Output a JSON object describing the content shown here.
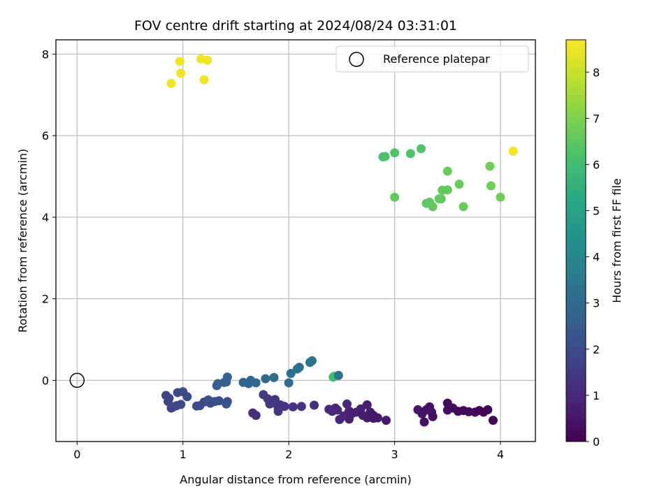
{
  "chart_data": {
    "type": "scatter",
    "title": "FOV centre drift starting at 2024/08/24 03:31:01",
    "xlabel": "Angular distance from reference (arcmin)",
    "ylabel": "Rotation from reference (arcmin)",
    "xlim": [
      -0.2,
      4.33
    ],
    "ylim": [
      -1.5,
      8.35
    ],
    "xticks": [
      0,
      1,
      2,
      3,
      4
    ],
    "yticks": [
      0,
      2,
      4,
      6,
      8
    ],
    "grid": true,
    "legend": {
      "position": "top-right",
      "entries": [
        {
          "label": "Reference platepar",
          "marker": "open-circle"
        }
      ]
    },
    "reference_point": {
      "x": 0,
      "y": 0
    },
    "colorbar": {
      "label": "Hours from first FF file",
      "colormap": "viridis",
      "range": [
        0,
        8.7
      ],
      "ticks": [
        0,
        1,
        2,
        3,
        4,
        5,
        6,
        7,
        8
      ]
    },
    "points": [
      {
        "x": 0.89,
        "y": 7.28,
        "c": 8.5
      },
      {
        "x": 0.97,
        "y": 7.82,
        "c": 8.5
      },
      {
        "x": 0.98,
        "y": 7.53,
        "c": 8.5
      },
      {
        "x": 1.17,
        "y": 7.88,
        "c": 8.5
      },
      {
        "x": 1.2,
        "y": 7.37,
        "c": 8.5
      },
      {
        "x": 1.23,
        "y": 7.85,
        "c": 8.5
      },
      {
        "x": 4.12,
        "y": 5.62,
        "c": 8.5
      },
      {
        "x": 2.89,
        "y": 5.48,
        "c": 6.2
      },
      {
        "x": 2.91,
        "y": 5.49,
        "c": 6.2
      },
      {
        "x": 3.0,
        "y": 5.58,
        "c": 6.3
      },
      {
        "x": 3.15,
        "y": 5.56,
        "c": 6.3
      },
      {
        "x": 3.25,
        "y": 5.68,
        "c": 6.3
      },
      {
        "x": 3.0,
        "y": 4.49,
        "c": 6.6
      },
      {
        "x": 3.3,
        "y": 4.34,
        "c": 6.5
      },
      {
        "x": 3.33,
        "y": 4.37,
        "c": 6.5
      },
      {
        "x": 3.36,
        "y": 4.26,
        "c": 6.6
      },
      {
        "x": 3.42,
        "y": 4.45,
        "c": 6.6
      },
      {
        "x": 3.44,
        "y": 4.45,
        "c": 6.6
      },
      {
        "x": 3.45,
        "y": 4.66,
        "c": 6.6
      },
      {
        "x": 3.5,
        "y": 4.67,
        "c": 6.6
      },
      {
        "x": 3.5,
        "y": 5.13,
        "c": 6.7
      },
      {
        "x": 3.61,
        "y": 4.81,
        "c": 6.7
      },
      {
        "x": 3.65,
        "y": 4.26,
        "c": 6.7
      },
      {
        "x": 3.9,
        "y": 5.25,
        "c": 6.8
      },
      {
        "x": 3.91,
        "y": 4.77,
        "c": 6.8
      },
      {
        "x": 4.0,
        "y": 4.49,
        "c": 6.8
      },
      {
        "x": 2.42,
        "y": 0.08,
        "c": 6.0
      },
      {
        "x": 2.43,
        "y": 0.1,
        "c": 6.0
      },
      {
        "x": 2.47,
        "y": 0.12,
        "c": 3.3
      },
      {
        "x": 2.2,
        "y": 0.44,
        "c": 3.3
      },
      {
        "x": 2.22,
        "y": 0.48,
        "c": 3.3
      },
      {
        "x": 2.1,
        "y": 0.32,
        "c": 3.2
      },
      {
        "x": 2.08,
        "y": 0.28,
        "c": 3.2
      },
      {
        "x": 2.02,
        "y": 0.17,
        "c": 3.1
      },
      {
        "x": 2.0,
        "y": -0.06,
        "c": 3.1
      },
      {
        "x": 1.86,
        "y": 0.07,
        "c": 3.0
      },
      {
        "x": 1.78,
        "y": 0.04,
        "c": 3.0
      },
      {
        "x": 1.69,
        "y": -0.06,
        "c": 2.9
      },
      {
        "x": 1.64,
        "y": 0.0,
        "c": 2.9
      },
      {
        "x": 1.62,
        "y": -0.08,
        "c": 2.8
      },
      {
        "x": 1.57,
        "y": -0.05,
        "c": 2.8
      },
      {
        "x": 1.42,
        "y": 0.08,
        "c": 2.7
      },
      {
        "x": 1.41,
        "y": -0.04,
        "c": 2.7
      },
      {
        "x": 1.39,
        "y": -0.05,
        "c": 2.7
      },
      {
        "x": 1.33,
        "y": -0.08,
        "c": 2.6
      },
      {
        "x": 1.32,
        "y": -0.13,
        "c": 2.6
      },
      {
        "x": 1.42,
        "y": -0.52,
        "c": 2.2
      },
      {
        "x": 1.41,
        "y": -0.58,
        "c": 2.2
      },
      {
        "x": 1.34,
        "y": -0.5,
        "c": 2.2
      },
      {
        "x": 1.3,
        "y": -0.52,
        "c": 2.2
      },
      {
        "x": 1.26,
        "y": -0.56,
        "c": 2.1
      },
      {
        "x": 1.24,
        "y": -0.48,
        "c": 2.1
      },
      {
        "x": 1.2,
        "y": -0.53,
        "c": 2.1
      },
      {
        "x": 1.16,
        "y": -0.62,
        "c": 2.0
      },
      {
        "x": 1.13,
        "y": -0.63,
        "c": 2.0
      },
      {
        "x": 1.04,
        "y": -0.4,
        "c": 2.0
      },
      {
        "x": 1.0,
        "y": -0.28,
        "c": 2.0
      },
      {
        "x": 0.95,
        "y": -0.3,
        "c": 1.9
      },
      {
        "x": 0.98,
        "y": -0.59,
        "c": 1.9
      },
      {
        "x": 0.94,
        "y": -0.62,
        "c": 1.9
      },
      {
        "x": 0.91,
        "y": -0.65,
        "c": 1.9
      },
      {
        "x": 0.89,
        "y": -0.68,
        "c": 1.8
      },
      {
        "x": 0.87,
        "y": -0.44,
        "c": 1.8
      },
      {
        "x": 0.86,
        "y": -0.52,
        "c": 1.8
      },
      {
        "x": 0.84,
        "y": -0.37,
        "c": 1.8
      },
      {
        "x": 1.76,
        "y": -0.35,
        "c": 1.5
      },
      {
        "x": 1.8,
        "y": -0.45,
        "c": 1.5
      },
      {
        "x": 1.82,
        "y": -0.58,
        "c": 1.5
      },
      {
        "x": 1.85,
        "y": -0.55,
        "c": 1.4
      },
      {
        "x": 1.87,
        "y": -0.47,
        "c": 1.4
      },
      {
        "x": 1.9,
        "y": -0.67,
        "c": 1.4
      },
      {
        "x": 1.92,
        "y": -0.6,
        "c": 1.4
      },
      {
        "x": 1.96,
        "y": -0.64,
        "c": 1.3
      },
      {
        "x": 1.9,
        "y": -0.76,
        "c": 1.3
      },
      {
        "x": 2.04,
        "y": -0.65,
        "c": 1.3
      },
      {
        "x": 2.12,
        "y": -0.64,
        "c": 1.3
      },
      {
        "x": 2.24,
        "y": -0.61,
        "c": 1.2
      },
      {
        "x": 1.66,
        "y": -0.8,
        "c": 1.2
      },
      {
        "x": 1.69,
        "y": -0.86,
        "c": 1.2
      },
      {
        "x": 2.38,
        "y": -0.71,
        "c": 1.0
      },
      {
        "x": 2.41,
        "y": -0.76,
        "c": 1.0
      },
      {
        "x": 2.44,
        "y": -0.68,
        "c": 1.0
      },
      {
        "x": 2.46,
        "y": -0.73,
        "c": 1.0
      },
      {
        "x": 2.48,
        "y": -0.96,
        "c": 0.9
      },
      {
        "x": 2.52,
        "y": -0.87,
        "c": 0.9
      },
      {
        "x": 2.55,
        "y": -0.58,
        "c": 0.9
      },
      {
        "x": 2.57,
        "y": -0.75,
        "c": 0.9
      },
      {
        "x": 2.6,
        "y": -0.81,
        "c": 0.8
      },
      {
        "x": 2.57,
        "y": -0.95,
        "c": 0.8
      },
      {
        "x": 2.64,
        "y": -0.78,
        "c": 0.8
      },
      {
        "x": 2.68,
        "y": -0.7,
        "c": 0.8
      },
      {
        "x": 2.7,
        "y": -0.86,
        "c": 0.7
      },
      {
        "x": 2.74,
        "y": -0.6,
        "c": 0.7
      },
      {
        "x": 2.74,
        "y": -0.92,
        "c": 0.7
      },
      {
        "x": 2.77,
        "y": -0.78,
        "c": 0.7
      },
      {
        "x": 2.8,
        "y": -0.86,
        "c": 0.6
      },
      {
        "x": 2.84,
        "y": -0.92,
        "c": 0.6
      },
      {
        "x": 2.92,
        "y": -0.98,
        "c": 0.6
      },
      {
        "x": 2.8,
        "y": -0.93,
        "c": 0.6
      },
      {
        "x": 3.22,
        "y": -0.72,
        "c": 0.5
      },
      {
        "x": 3.26,
        "y": -0.82,
        "c": 0.5
      },
      {
        "x": 3.3,
        "y": -0.72,
        "c": 0.4
      },
      {
        "x": 3.33,
        "y": -0.65,
        "c": 0.4
      },
      {
        "x": 3.35,
        "y": -0.78,
        "c": 0.4
      },
      {
        "x": 3.28,
        "y": -1.02,
        "c": 0.4
      },
      {
        "x": 3.36,
        "y": -0.89,
        "c": 0.3
      },
      {
        "x": 3.5,
        "y": -0.56,
        "c": 0.3
      },
      {
        "x": 3.5,
        "y": -0.73,
        "c": 0.3
      },
      {
        "x": 3.55,
        "y": -0.68,
        "c": 0.3
      },
      {
        "x": 3.6,
        "y": -0.76,
        "c": 0.2
      },
      {
        "x": 3.65,
        "y": -0.74,
        "c": 0.2
      },
      {
        "x": 3.7,
        "y": -0.77,
        "c": 0.2
      },
      {
        "x": 3.76,
        "y": -0.78,
        "c": 0.2
      },
      {
        "x": 3.8,
        "y": -0.74,
        "c": 0.1
      },
      {
        "x": 3.84,
        "y": -0.78,
        "c": 0.1
      },
      {
        "x": 3.88,
        "y": -0.72,
        "c": 0.1
      },
      {
        "x": 3.93,
        "y": -0.98,
        "c": 0.0
      }
    ]
  }
}
